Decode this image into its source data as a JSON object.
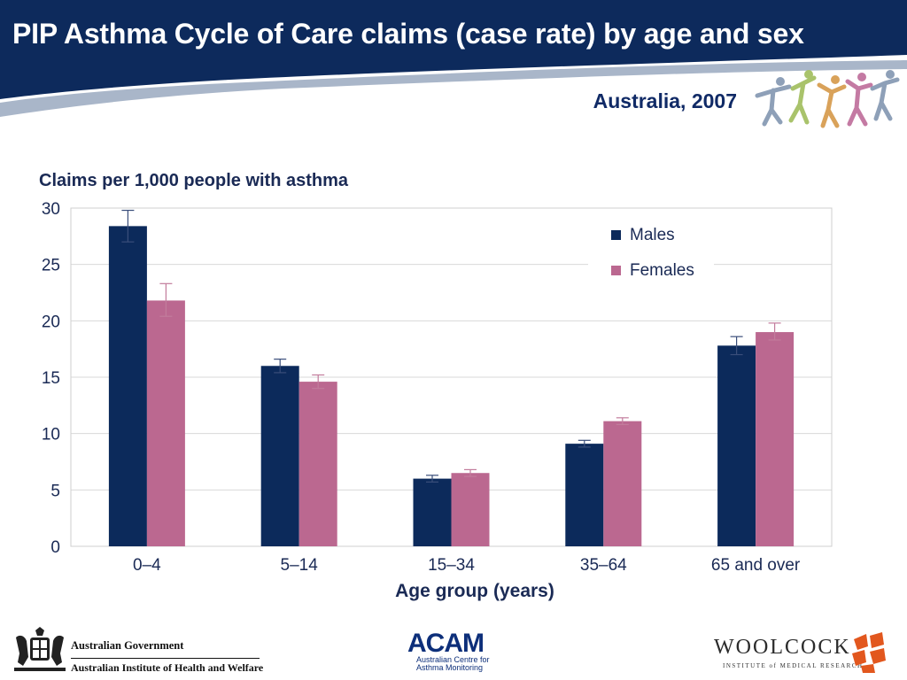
{
  "header": {
    "title": "PIP Asthma Cycle of Care claims (case rate) by age and sex",
    "subtitle": "Australia, 2007"
  },
  "colors": {
    "banner": "#0d2a5c",
    "swoosh": "#a9b6c9",
    "males": "#0c2a5b",
    "females": "#bb6890",
    "gridline": "#d9d9d9",
    "error_bar_males": "#3a4e7a",
    "error_bar_females": "#c27c9c"
  },
  "chart_data": {
    "type": "bar",
    "title": "Claims per 1,000 people with asthma",
    "xlabel": "Age group (years)",
    "ylabel": "Claims per 1,000 people with asthma",
    "categories": [
      "0–4",
      "5–14",
      "15–34",
      "35–64",
      "65 and over"
    ],
    "series": [
      {
        "name": "Males",
        "values": [
          28.4,
          16.0,
          6.0,
          9.1,
          17.8
        ],
        "error_low": [
          27.0,
          15.4,
          5.7,
          8.8,
          17.0
        ],
        "error_high": [
          29.8,
          16.6,
          6.3,
          9.4,
          18.6
        ]
      },
      {
        "name": "Females",
        "values": [
          21.8,
          14.6,
          6.5,
          11.1,
          19.0
        ],
        "error_low": [
          20.4,
          14.0,
          6.2,
          10.8,
          18.3
        ],
        "error_high": [
          23.3,
          15.2,
          6.8,
          11.4,
          19.8
        ]
      }
    ],
    "yticks": [
      0,
      5,
      10,
      15,
      20,
      25,
      30
    ],
    "ylim": [
      0,
      30
    ],
    "grid": true,
    "legend_position": "top-right"
  },
  "footer": {
    "gov_name": "Australian Government",
    "gov_institute": "Australian Institute of Health and Welfare",
    "acam_name": "ACAM",
    "acam_line1": "Australian Centre for",
    "acam_line2": "Asthma Monitoring",
    "woolcock_name": "WOOLCOCK",
    "woolcock_sub": "INSTITUTE of MEDICAL RESEARCH"
  }
}
